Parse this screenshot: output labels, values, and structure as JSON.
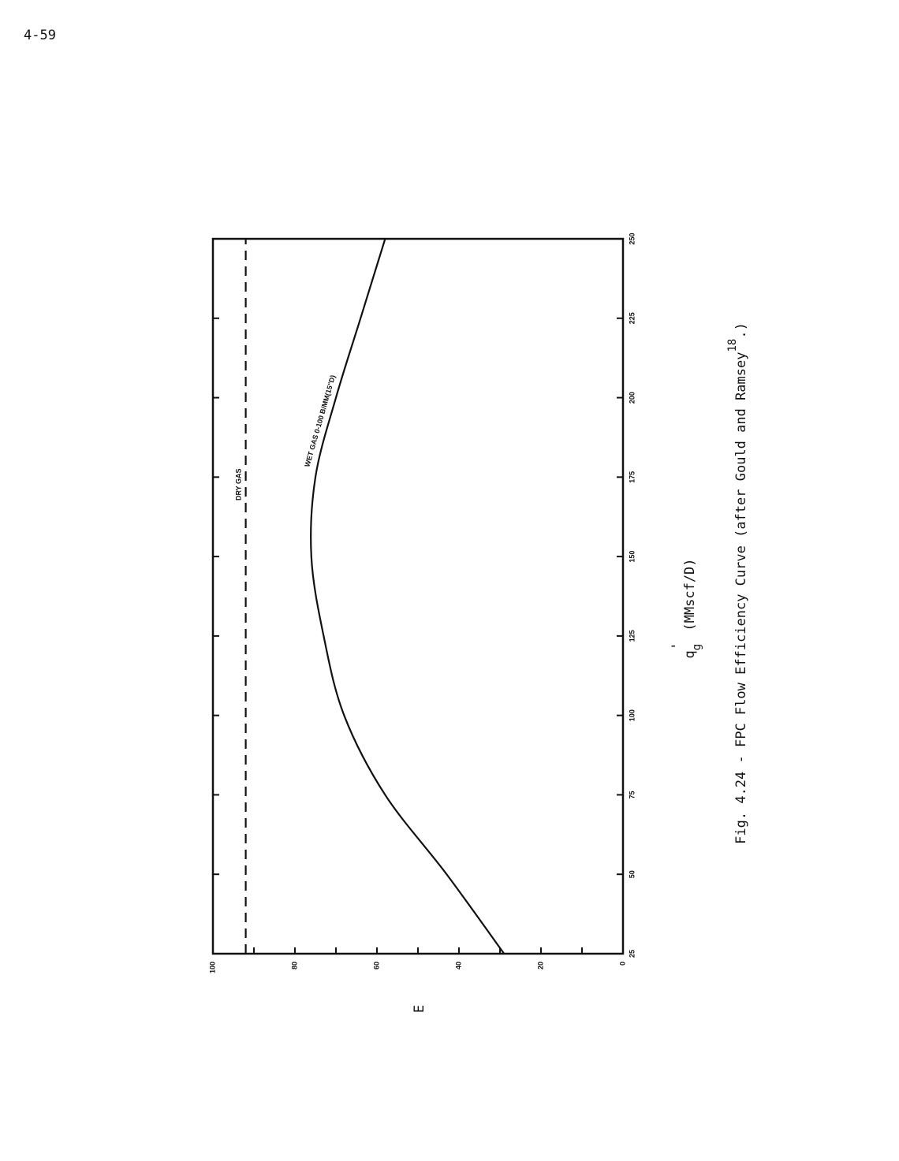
{
  "page_number": "4-59",
  "chart_data": {
    "type": "line",
    "caption": {
      "text": "Fig. 4.24 - FPC Flow Efficiency Curve (after Gould and Ramsey",
      "superscript": "18",
      "end": ".)"
    },
    "xlabel": {
      "symbol": "q",
      "subscript": "g",
      "prime": "'",
      "units": "(MMscf/D)"
    },
    "ylabel": "E",
    "xlim": [
      25,
      250
    ],
    "xticks": [
      25,
      50,
      75,
      100,
      125,
      150,
      175,
      200,
      225,
      250
    ],
    "ylim": [
      0,
      100
    ],
    "yticks": [
      0,
      20,
      40,
      60,
      80,
      100
    ],
    "yminorticks": [
      10,
      30,
      50,
      70,
      90
    ],
    "color": "#111111",
    "series": [
      {
        "name": "DRY GAS",
        "x": [
          25,
          250
        ],
        "values": [
          92,
          92
        ],
        "dashed": true
      },
      {
        "name": "WET GAS 0-100 B/MM(15\"D)",
        "x": [
          25,
          50,
          75,
          100,
          125,
          150,
          175,
          200,
          225,
          250
        ],
        "values": [
          29,
          43,
          58,
          68,
          73,
          76,
          75,
          70,
          64,
          58
        ],
        "dashed": false
      }
    ]
  }
}
